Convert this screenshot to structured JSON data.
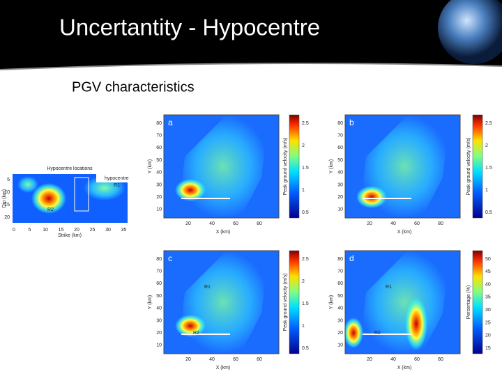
{
  "header": {
    "title": "Uncertantity - Hypocentre"
  },
  "subtitle": "PGV characteristics",
  "inset": {
    "title": "Hypocentre locations",
    "legend": "hypocentre",
    "labels": [
      "R1",
      "R2"
    ],
    "x_label": "Strike (km)",
    "y_label": "Dip (km)",
    "x_ticks": [
      "0",
      "5",
      "10",
      "15",
      "20",
      "25",
      "30",
      "35"
    ],
    "y_ticks": [
      "5",
      "10",
      "15",
      "20"
    ]
  },
  "panels": [
    {
      "letter": "a",
      "x_label": "X (km)",
      "y_label": "Y (km)",
      "colorbar_label": "Peak ground velocity (m/s)",
      "x_ticks": [
        "20",
        "40",
        "60",
        "80"
      ],
      "y_ticks": [
        "80",
        "70",
        "60",
        "50",
        "40",
        "30",
        "20",
        "10"
      ],
      "colorbar_ticks": [
        "2.5",
        "2",
        "1.5",
        "1",
        "0.5"
      ],
      "annotations": []
    },
    {
      "letter": "b",
      "x_label": "X (km)",
      "y_label": "Y (km)",
      "colorbar_label": "Peak ground velocity (m/s)",
      "x_ticks": [
        "20",
        "40",
        "60",
        "80"
      ],
      "y_ticks": [
        "80",
        "70",
        "60",
        "50",
        "40",
        "30",
        "20",
        "10"
      ],
      "colorbar_ticks": [
        "2.5",
        "2",
        "1.5",
        "1",
        "0.5"
      ],
      "annotations": []
    },
    {
      "letter": "c",
      "x_label": "X (km)",
      "y_label": "Y (km)",
      "colorbar_label": "Peak ground velocity (m/s)",
      "x_ticks": [
        "20",
        "40",
        "60",
        "80"
      ],
      "y_ticks": [
        "80",
        "70",
        "60",
        "50",
        "40",
        "30",
        "20",
        "10"
      ],
      "colorbar_ticks": [
        "2.5",
        "2",
        "1.5",
        "1",
        "0.5"
      ],
      "annotations": [
        "R1",
        "R2"
      ]
    },
    {
      "letter": "d",
      "x_label": "X (km)",
      "y_label": "Y (km)",
      "colorbar_label": "Percentage (%)",
      "x_ticks": [
        "20",
        "40",
        "60",
        "80"
      ],
      "y_ticks": [
        "80",
        "70",
        "60",
        "50",
        "40",
        "30",
        "20",
        "10"
      ],
      "colorbar_ticks": [
        "50",
        "45",
        "40",
        "35",
        "30",
        "25",
        "20",
        "15"
      ],
      "annotations": [
        "R1",
        "R2"
      ]
    }
  ]
}
